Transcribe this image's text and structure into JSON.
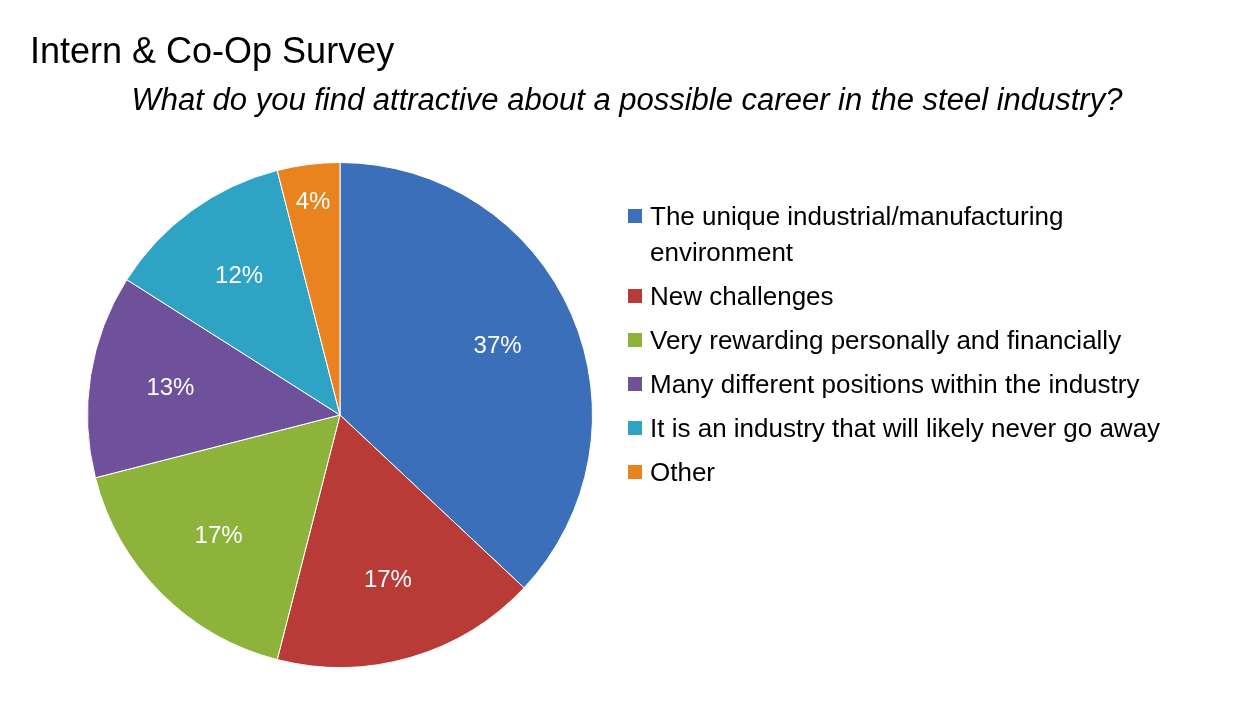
{
  "chart_data": {
    "type": "pie",
    "title": "Intern & Co-Op Survey",
    "subtitle": "What do you find attractive about a possible career in the steel industry?",
    "categories": [
      "The unique industrial/manufacturing environment",
      "New challenges",
      "Very rewarding personally and financially",
      "Many different positions within the industry",
      "It is an industry that will likely never go away",
      "Other"
    ],
    "values": [
      37,
      17,
      17,
      13,
      12,
      4
    ],
    "colors": [
      "#3b6fba",
      "#b83b37",
      "#8db33b",
      "#6f509b",
      "#2fa3c4",
      "#e8831f"
    ],
    "value_labels": [
      "37%",
      "17%",
      "17%",
      "13%",
      "12%",
      "4%"
    ],
    "legend": "right"
  }
}
